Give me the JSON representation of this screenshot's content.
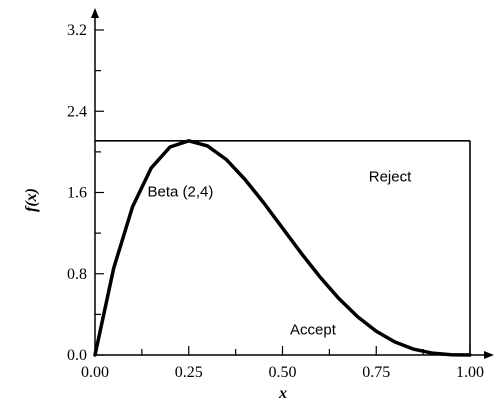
{
  "chart_data": {
    "type": "line",
    "xlabel": "x",
    "ylabel": "f(x)",
    "xlim": [
      0,
      1
    ],
    "ylim": [
      0,
      3.2
    ],
    "x_ticks": [
      "0.00",
      "0.25",
      "0.50",
      "0.75",
      "1.00"
    ],
    "y_ticks": [
      "0.0",
      "0.8",
      "1.6",
      "2.4",
      "3.2"
    ],
    "grid": false,
    "series": [
      {
        "name": "Beta (2,4)",
        "function": "20*x*(1-x)^3",
        "x": [
          0,
          0.05,
          0.1,
          0.15,
          0.2,
          0.25,
          0.3,
          0.35,
          0.4,
          0.45,
          0.5,
          0.55,
          0.6,
          0.65,
          0.7,
          0.75,
          0.8,
          0.85,
          0.9,
          0.95,
          1.0
        ],
        "y": [
          0,
          0.857,
          1.458,
          1.842,
          2.048,
          2.109,
          2.058,
          1.925,
          1.728,
          1.498,
          1.25,
          1.002,
          0.768,
          0.557,
          0.378,
          0.234,
          0.128,
          0.057,
          0.018,
          0.002,
          0
        ]
      }
    ],
    "envelope": {
      "y": 2.109,
      "x_from": 0,
      "x_to": 1
    },
    "annotations": [
      {
        "text": "Beta (2,4)",
        "x": 0.14,
        "y": 1.56
      },
      {
        "text": "Reject",
        "x": 0.73,
        "y": 1.71
      },
      {
        "text": "Accept",
        "x": 0.52,
        "y": 0.2
      }
    ]
  }
}
